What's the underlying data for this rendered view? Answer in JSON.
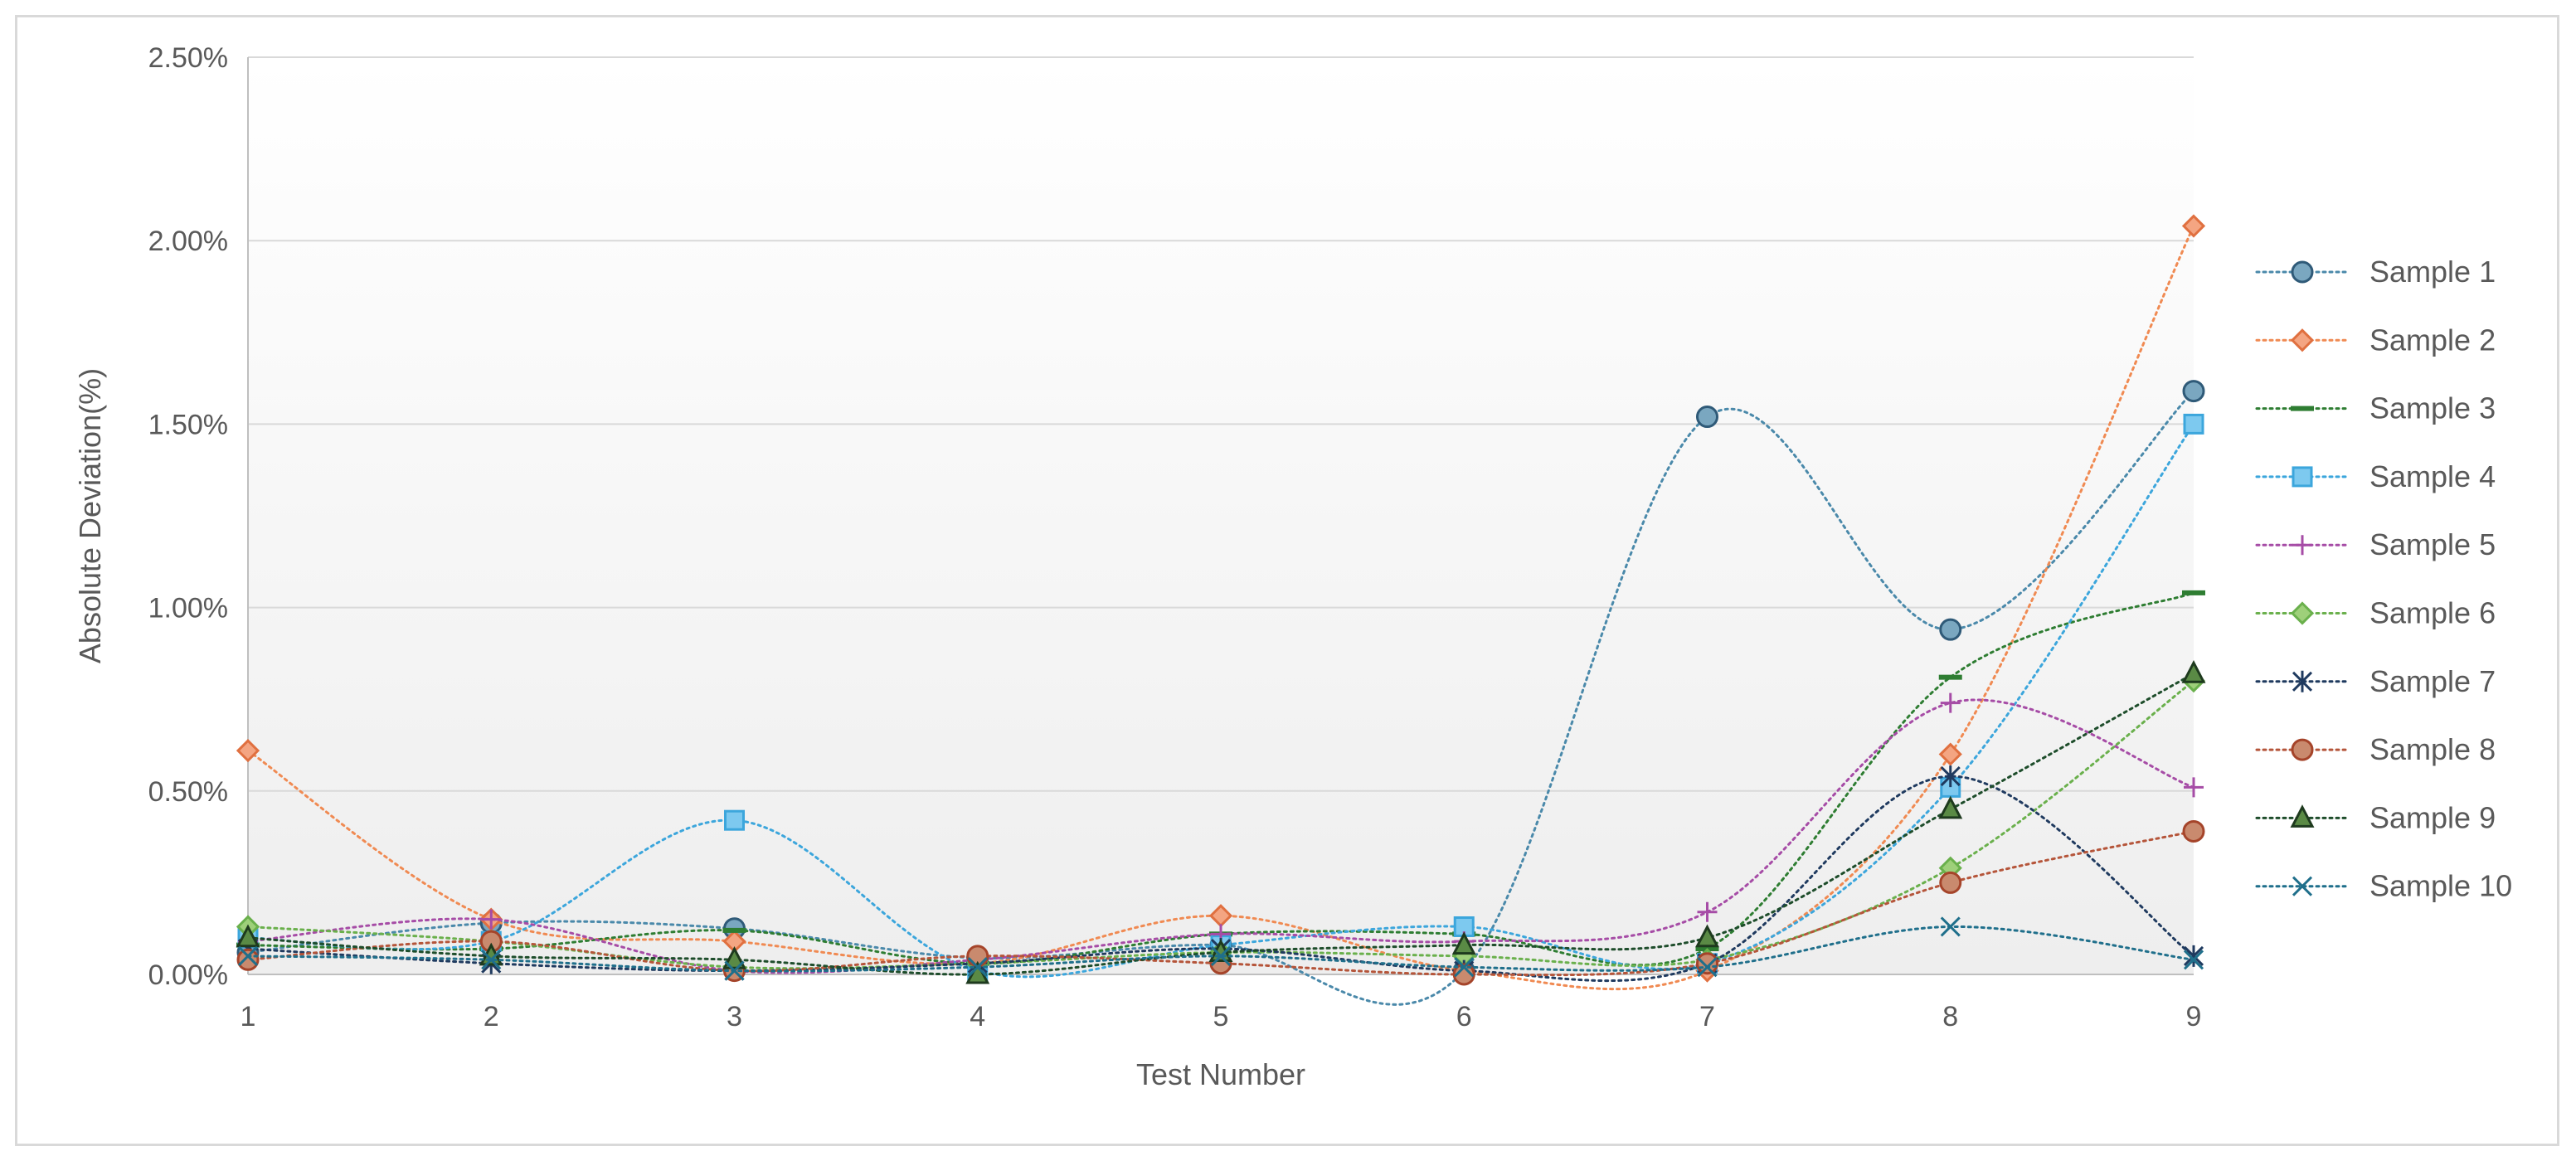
{
  "chart_data": {
    "type": "line",
    "title": "",
    "xlabel": "Test Number",
    "ylabel": "Absolute Deviation(%)",
    "x": [
      1,
      2,
      3,
      4,
      5,
      6,
      7,
      8,
      9
    ],
    "ylim": [
      0,
      0.025
    ],
    "y_ticks": [
      0,
      0.005,
      0.01,
      0.015,
      0.02,
      0.025
    ],
    "y_tick_labels": [
      "0.00%",
      "0.50%",
      "1.00%",
      "1.50%",
      "2.00%",
      "2.50%"
    ],
    "x_tick_labels": [
      "1",
      "2",
      "3",
      "4",
      "5",
      "6",
      "7",
      "8",
      "9"
    ],
    "grid": "horizontal",
    "legend_position": "right",
    "line_style": "dotted smoothed",
    "series": [
      {
        "name": "Sample 1",
        "color": "#4a89aa",
        "marker": "circle",
        "marker_fill": "#7aa7c0",
        "marker_edge": "#2f5a78",
        "values": [
          0.0006,
          0.0014,
          0.00125,
          0.00045,
          0.0008,
          0.0001,
          0.0152,
          0.0094,
          0.0159
        ]
      },
      {
        "name": "Sample 2",
        "color": "#f08a52",
        "marker": "diamond",
        "marker_fill": "#f4a582",
        "marker_edge": "#e07040",
        "values": [
          0.0061,
          0.0015,
          0.0009,
          0.0003,
          0.0016,
          0.0001,
          0.0001,
          0.006,
          0.0204
        ]
      },
      {
        "name": "Sample 3",
        "color": "#2e7d32",
        "marker": "dash",
        "marker_fill": "#2e7d32",
        "marker_edge": "#2e7d32",
        "values": [
          0.0008,
          0.0007,
          0.0012,
          0.0003,
          0.0011,
          0.0011,
          0.0007,
          0.0081,
          0.0104
        ]
      },
      {
        "name": "Sample 4",
        "color": "#3ca6dc",
        "marker": "square",
        "marker_fill": "#7dc9ef",
        "marker_edge": "#3ca6dc",
        "values": [
          0.001,
          0.0009,
          0.0042,
          0.0001,
          0.0008,
          0.0013,
          0.0003,
          0.0051,
          0.015
        ]
      },
      {
        "name": "Sample 5",
        "color": "#a64ca6",
        "marker": "plus",
        "marker_fill": "#a64ca6",
        "marker_edge": "#a64ca6",
        "values": [
          0.0009,
          0.0015,
          0.0001,
          0.0004,
          0.0011,
          0.0009,
          0.0017,
          0.0074,
          0.0051
        ]
      },
      {
        "name": "Sample 6",
        "color": "#6ab04c",
        "marker": "diamond",
        "marker_fill": "#9ed07a",
        "marker_edge": "#6ab04c",
        "values": [
          0.0013,
          0.0009,
          0.0002,
          0.0003,
          0.0006,
          0.0005,
          0.0004,
          0.0029,
          0.008
        ]
      },
      {
        "name": "Sample 7",
        "color": "#1f3a5f",
        "marker": "asterisk",
        "marker_fill": "#1f3a5f",
        "marker_edge": "#1f3a5f",
        "values": [
          0.0007,
          0.0003,
          0.0001,
          0.0003,
          0.0007,
          0.0001,
          0.0003,
          0.0054,
          0.0005
        ]
      },
      {
        "name": "Sample 8",
        "color": "#b5553a",
        "marker": "circle",
        "marker_fill": "#c98a6e",
        "marker_edge": "#a5442a",
        "values": [
          0.0004,
          0.0009,
          0.0001,
          0.0005,
          0.0003,
          0.0,
          0.0003,
          0.0025,
          0.0039
        ]
      },
      {
        "name": "Sample 9",
        "color": "#1e4d2b",
        "marker": "triangle",
        "marker_fill": "#5a8a45",
        "marker_edge": "#1e3a1e",
        "values": [
          0.001,
          0.0005,
          0.0004,
          0.0,
          0.0006,
          0.0008,
          0.001,
          0.0045,
          0.0082
        ]
      },
      {
        "name": "Sample 10",
        "color": "#1f6f8b",
        "marker": "x",
        "marker_fill": "#1f6f8b",
        "marker_edge": "#1f6f8b",
        "values": [
          0.0005,
          0.0004,
          0.0001,
          0.0002,
          0.0005,
          0.0002,
          0.0002,
          0.0013,
          0.0004
        ]
      }
    ]
  }
}
